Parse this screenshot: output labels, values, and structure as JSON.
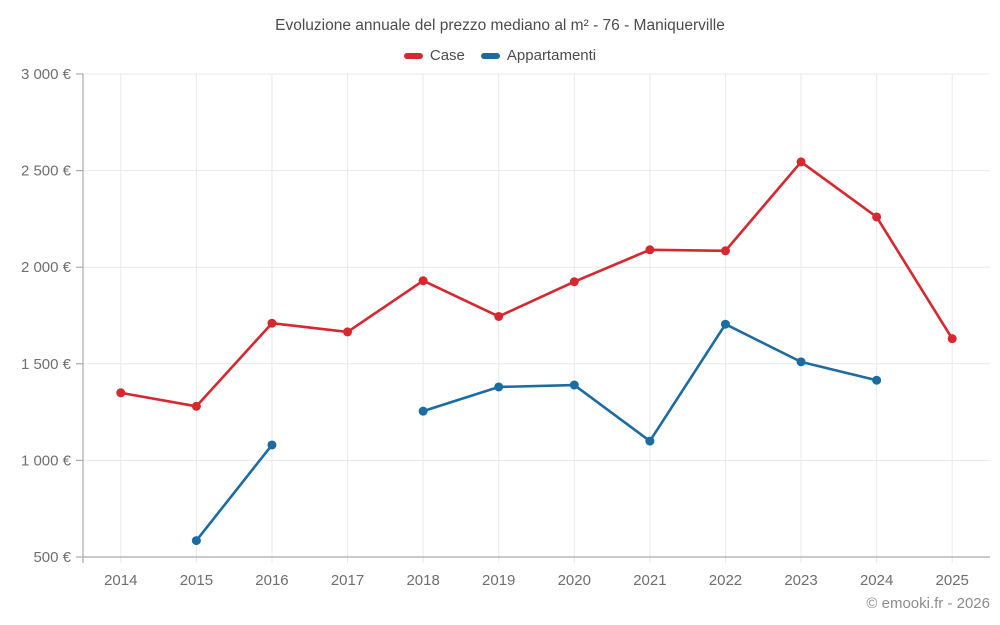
{
  "page": {
    "watermark": "© emooki.fr - 2026"
  },
  "colors": {
    "grid": "#e9e9e9",
    "axis": "#ababab",
    "tick_text": "#6f6f6f",
    "title_text": "#4c4c4c",
    "watermark_text": "#8c8c8c",
    "case_red": "#d7282f",
    "appartamenti_blue": "#1c6ca4"
  },
  "chart_data": {
    "type": "line",
    "title": "Evoluzione annuale del prezzo mediano al m² - 76 - Maniquerville",
    "x": [
      2014,
      2015,
      2016,
      2017,
      2018,
      2019,
      2020,
      2021,
      2022,
      2023,
      2024,
      2025
    ],
    "series": [
      {
        "name": "Case",
        "color": "#d7282f",
        "values": [
          1350,
          1280,
          1710,
          1665,
          1930,
          1745,
          1925,
          2090,
          2085,
          2545,
          2260,
          1630
        ]
      },
      {
        "name": "Appartamenti",
        "color": "#1c6ca4",
        "values": [
          null,
          585,
          1080,
          null,
          1255,
          1380,
          1390,
          1100,
          1705,
          1510,
          1415,
          null
        ]
      }
    ],
    "ylim": [
      500,
      3000
    ],
    "yticks": [
      {
        "value": 3000,
        "label": "3 000 €"
      },
      {
        "value": 2500,
        "label": "2 500 €"
      },
      {
        "value": 2000,
        "label": "2 000 €"
      },
      {
        "value": 1500,
        "label": "1 500 €"
      },
      {
        "value": 1000,
        "label": "1 000 €"
      },
      {
        "value": 500,
        "label": "500 €"
      }
    ],
    "grid": true,
    "legend_position": "top",
    "xlabel": "",
    "ylabel": ""
  }
}
